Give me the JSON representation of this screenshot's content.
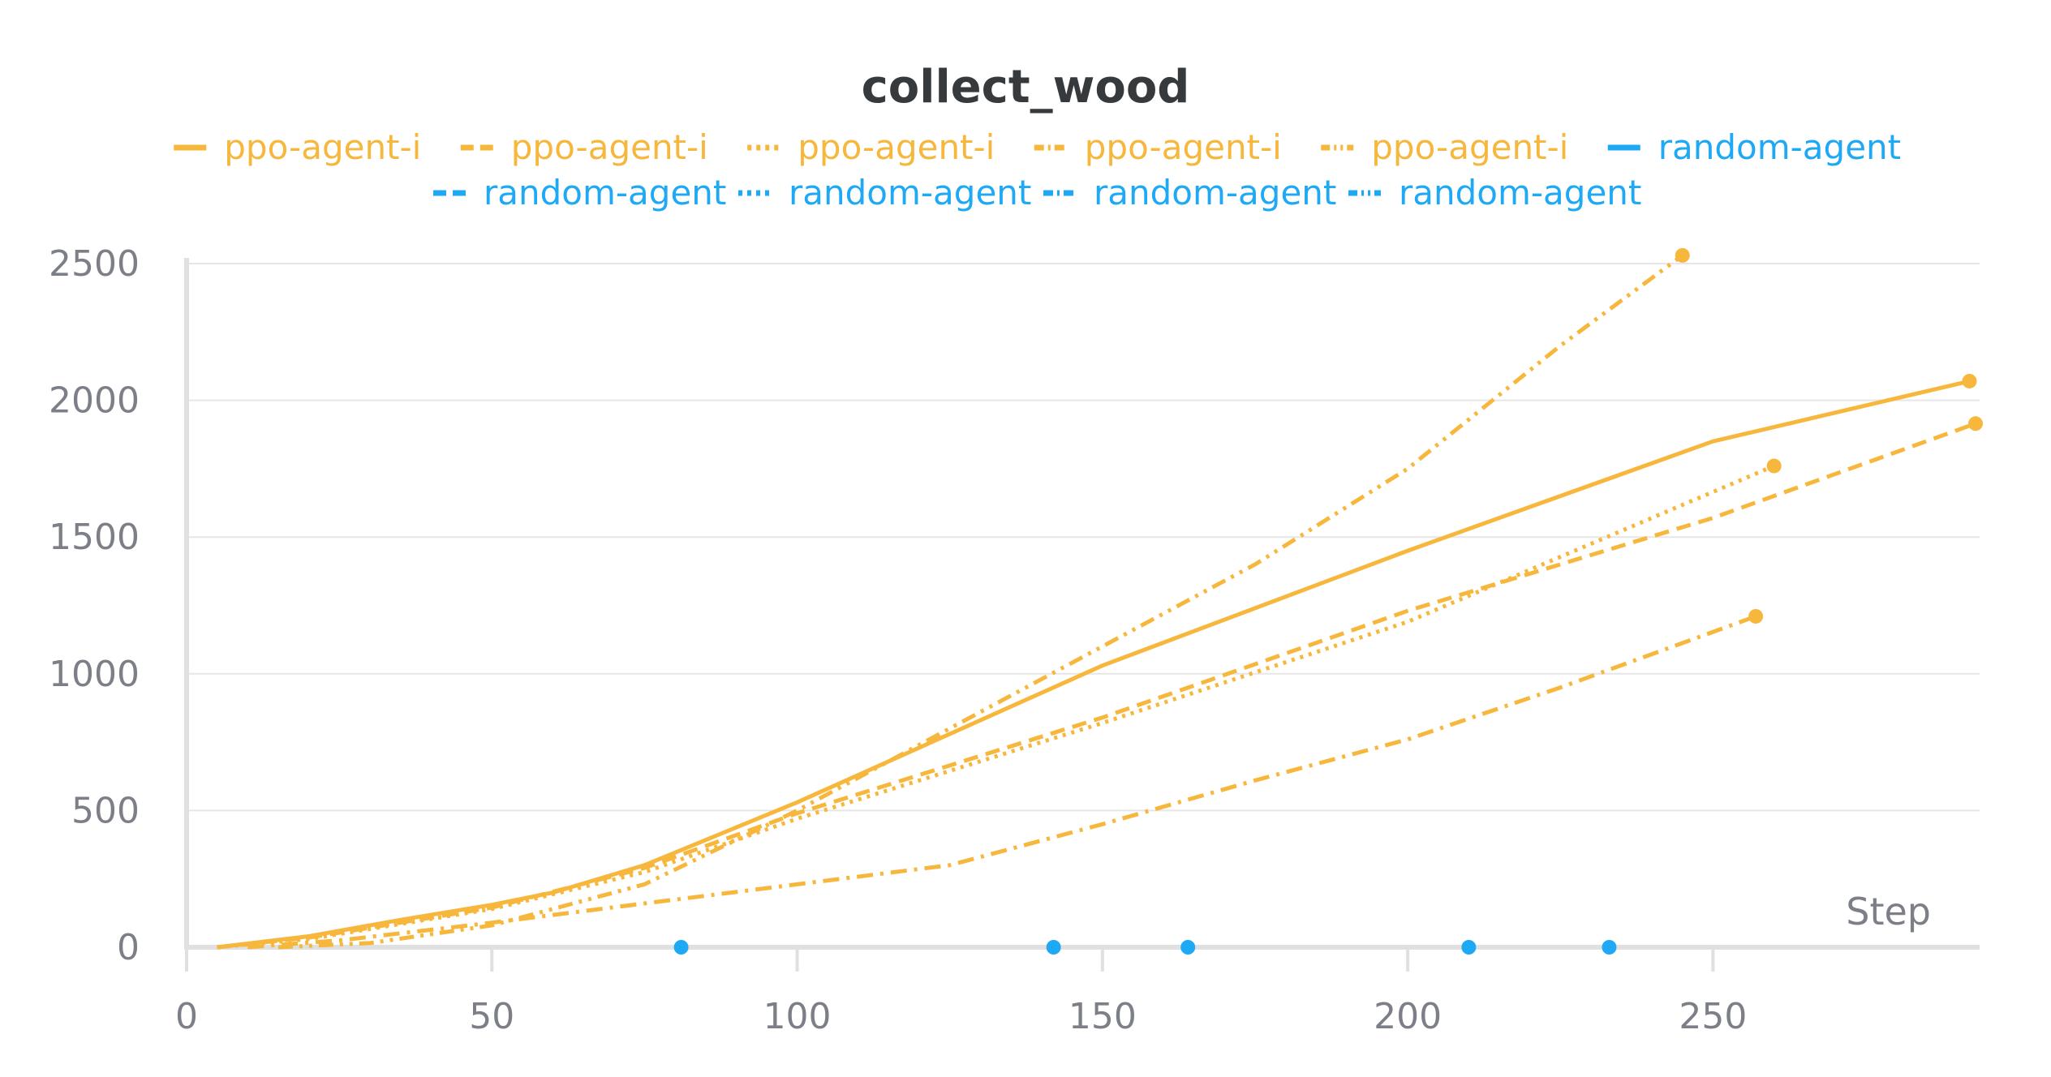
{
  "chart_data": {
    "type": "line",
    "title": "collect_wood",
    "xlabel": "Step",
    "ylabel": "",
    "xlim": [
      0,
      293
    ],
    "ylim": [
      0,
      2500
    ],
    "xticks": [
      "0",
      "50",
      "100",
      "150",
      "200",
      "250"
    ],
    "yticks": [
      "0",
      "500",
      "1000",
      "1500",
      "2000",
      "2500"
    ],
    "grid": true,
    "legend_position": "top",
    "colors": {
      "ppo": "#f6b73c",
      "random": "#1fa9f5",
      "grid": "#e6e6e6",
      "axis": "#e0e0e0"
    },
    "series": [
      {
        "name": "ppo-agent-i",
        "style": "solid",
        "color": "#f6b73c",
        "x": [
          5,
          20,
          35,
          50,
          60,
          75,
          100,
          150,
          200,
          250,
          292
        ],
        "y": [
          0,
          40,
          100,
          155,
          200,
          300,
          530,
          1030,
          1450,
          1850,
          2070
        ]
      },
      {
        "name": "ppo-agent-i",
        "style": "dashed",
        "color": "#f6b73c",
        "x": [
          5,
          20,
          35,
          50,
          75,
          100,
          150,
          200,
          250,
          293
        ],
        "y": [
          0,
          35,
          90,
          145,
          290,
          490,
          840,
          1230,
          1570,
          1915
        ]
      },
      {
        "name": "ppo-agent-i",
        "style": "dotted",
        "color": "#f6b73c",
        "x": [
          5,
          20,
          35,
          50,
          75,
          100,
          150,
          200,
          260
        ],
        "y": [
          0,
          30,
          85,
          140,
          275,
          470,
          820,
          1190,
          1760
        ]
      },
      {
        "name": "ppo-agent-i",
        "style": "dashdot",
        "color": "#f6b73c",
        "x": [
          10,
          25,
          50,
          75,
          100,
          125,
          150,
          175,
          200,
          225,
          257
        ],
        "y": [
          0,
          25,
          90,
          160,
          230,
          300,
          450,
          610,
          760,
          950,
          1210
        ]
      },
      {
        "name": "ppo-agent-i",
        "style": "dashdotdot",
        "color": "#f6b73c",
        "x": [
          15,
          30,
          50,
          75,
          100,
          125,
          150,
          175,
          200,
          225,
          245
        ],
        "y": [
          0,
          15,
          80,
          230,
          500,
          800,
          1100,
          1400,
          1750,
          2200,
          2530
        ]
      },
      {
        "name": "random-agent",
        "style": "solid",
        "color": "#1fa9f5",
        "x": [
          81
        ],
        "y": [
          0
        ]
      },
      {
        "name": "random-agent",
        "style": "dashed",
        "color": "#1fa9f5",
        "x": [
          142
        ],
        "y": [
          0
        ]
      },
      {
        "name": "random-agent",
        "style": "dotted",
        "color": "#1fa9f5",
        "x": [
          164
        ],
        "y": [
          0
        ]
      },
      {
        "name": "random-agent",
        "style": "dashdot",
        "color": "#1fa9f5",
        "x": [
          210
        ],
        "y": [
          0
        ]
      },
      {
        "name": "random-agent",
        "style": "dashdotdot",
        "color": "#1fa9f5",
        "x": [
          233
        ],
        "y": [
          0
        ]
      }
    ]
  }
}
